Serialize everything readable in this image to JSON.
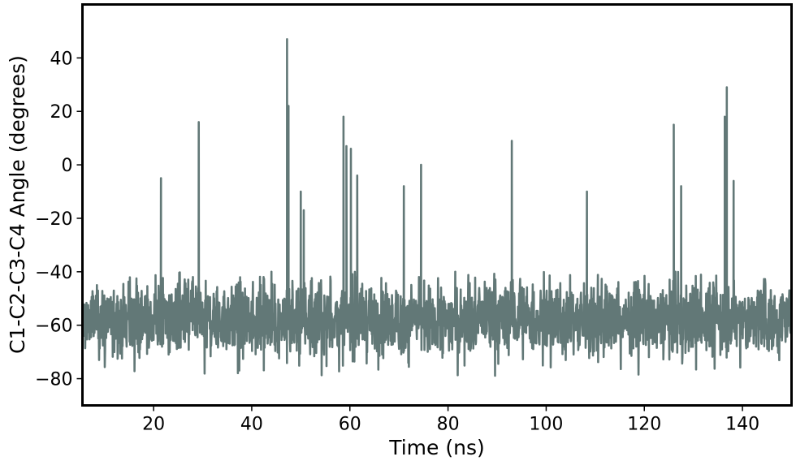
{
  "chart_data": {
    "type": "line",
    "xlabel": "Time (ns)",
    "ylabel": "C1-C2-C3-C4 Angle (degrees)",
    "xlim": [
      5.5,
      150
    ],
    "ylim": [
      -90,
      60
    ],
    "x_ticks": [
      20,
      40,
      60,
      80,
      100,
      120,
      140
    ],
    "y_ticks": [
      40,
      20,
      0,
      -20,
      -40,
      -60,
      -80
    ],
    "grid": false,
    "legend": "none",
    "line_color": "#627877",
    "baseline": {
      "mean": -58,
      "typical_low": -70,
      "typical_high": -46,
      "min": -79,
      "max": -40
    },
    "spikes": [
      {
        "x": 21.5,
        "y": -5
      },
      {
        "x": 29.2,
        "y": 16
      },
      {
        "x": 47.2,
        "y": 47
      },
      {
        "x": 47.5,
        "y": 22
      },
      {
        "x": 50.0,
        "y": -10
      },
      {
        "x": 50.6,
        "y": -17
      },
      {
        "x": 58.7,
        "y": 18
      },
      {
        "x": 59.3,
        "y": 7
      },
      {
        "x": 60.2,
        "y": 6
      },
      {
        "x": 61.5,
        "y": -4
      },
      {
        "x": 71.0,
        "y": -8
      },
      {
        "x": 74.5,
        "y": 0
      },
      {
        "x": 93.0,
        "y": 9
      },
      {
        "x": 108.3,
        "y": -10
      },
      {
        "x": 126.0,
        "y": 15
      },
      {
        "x": 127.5,
        "y": -8
      },
      {
        "x": 136.4,
        "y": 18
      },
      {
        "x": 136.8,
        "y": 29
      },
      {
        "x": 138.2,
        "y": -6
      }
    ]
  }
}
